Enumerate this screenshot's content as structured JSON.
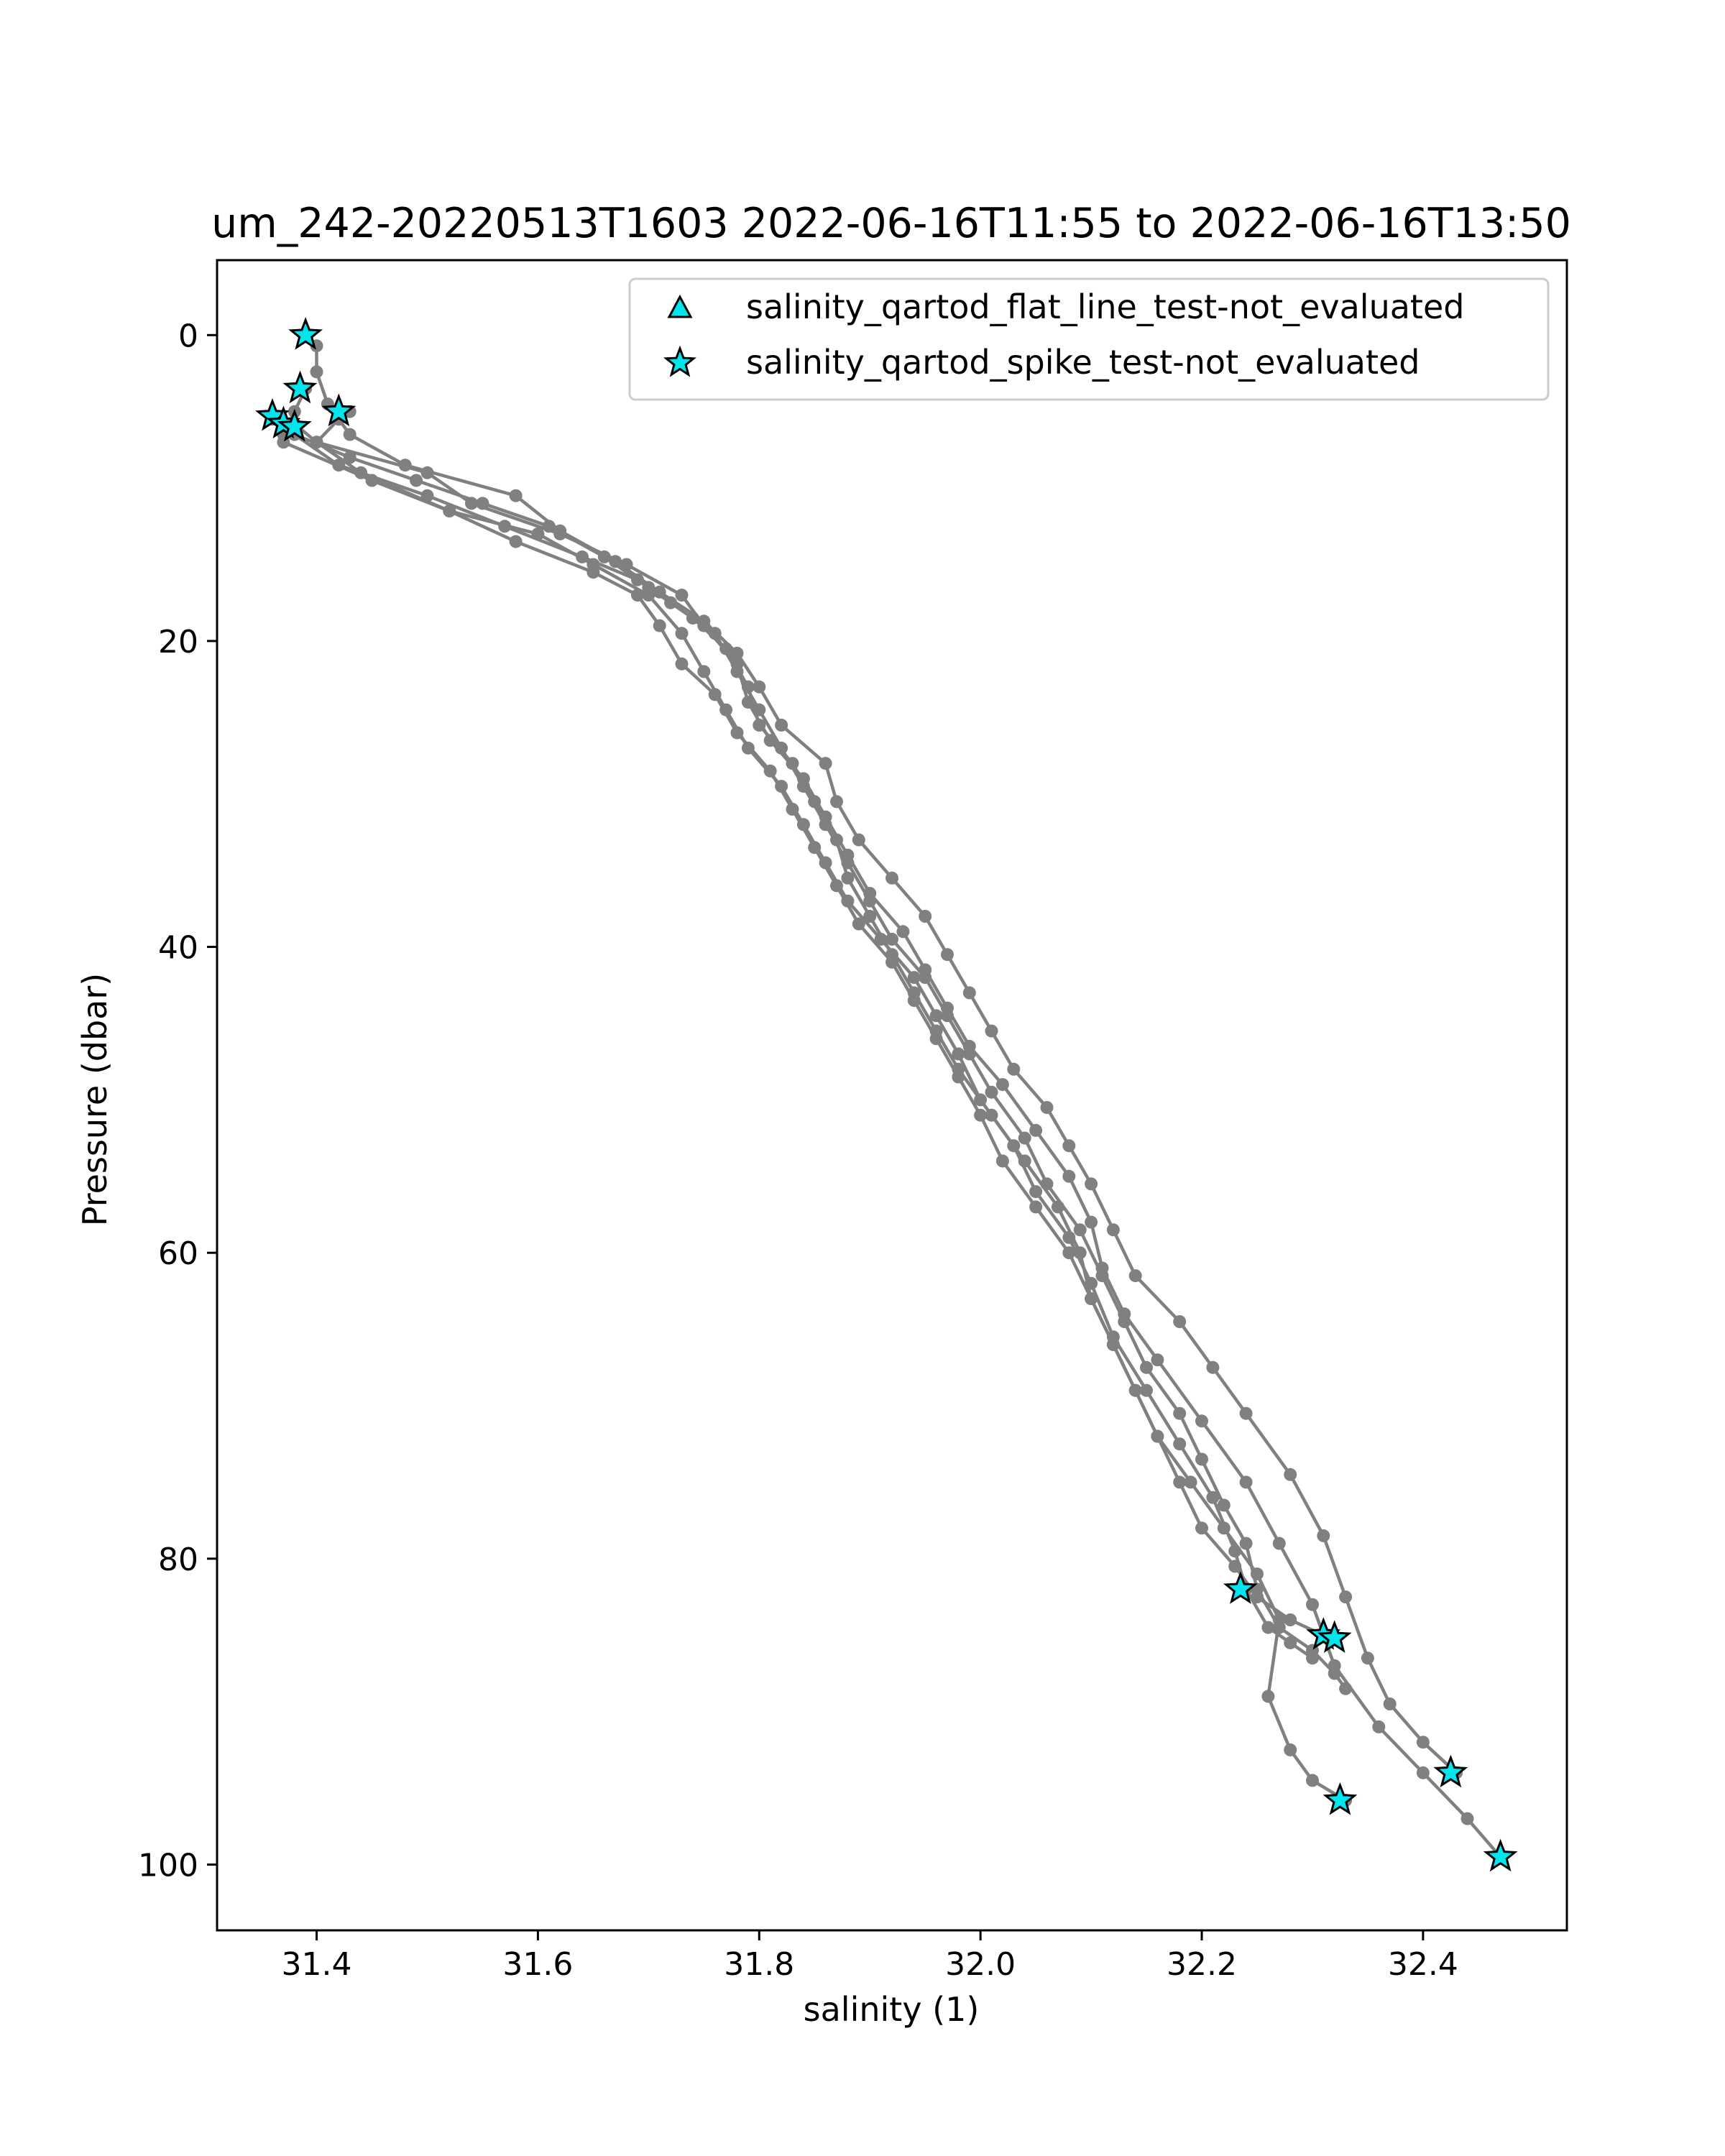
{
  "chart_data": {
    "type": "scatter",
    "title": "um_242-20220513T1603 2022-06-16T11:55 to 2022-06-16T13:50",
    "xlabel": "salinity (1)",
    "ylabel": "Pressure (dbar)",
    "xlim": [
      31.31,
      32.53
    ],
    "ylim": [
      104.3,
      -4.9
    ],
    "y_inverted": true,
    "grid": false,
    "legend_position": "upper right",
    "x_ticks": [
      31.4,
      31.6,
      31.8,
      32.0,
      32.2,
      32.4
    ],
    "x_tick_labels": [
      "31.4",
      "31.6",
      "31.8",
      "32.0",
      "32.2",
      "32.4"
    ],
    "y_ticks": [
      0,
      20,
      40,
      60,
      80,
      100
    ],
    "y_tick_labels": [
      "0",
      "20",
      "40",
      "60",
      "80",
      "100"
    ],
    "colors": {
      "profile": "#808080",
      "flag_fill": "#00e5ee",
      "flag_edge": "#000000"
    },
    "profiles": [
      {
        "x": [
          31.39,
          31.4,
          31.4,
          31.41,
          31.43,
          31.48,
          31.58,
          31.62,
          31.67,
          31.71,
          31.75,
          31.78,
          31.8,
          31.82,
          31.86,
          31.87,
          31.89,
          31.92,
          31.95,
          31.97,
          31.99,
          32.01,
          32.03,
          32.06,
          32.08,
          32.1,
          32.12,
          32.14,
          32.18,
          32.21,
          32.24,
          32.28,
          32.31,
          32.33,
          32.35,
          32.37,
          32.4,
          32.43
        ],
        "y": [
          0.0,
          0.7,
          2.4,
          4.5,
          6.5,
          8.5,
          10.5,
          12.8,
          14.8,
          16.8,
          18.7,
          20.8,
          23.0,
          25.5,
          28.0,
          30.5,
          33.0,
          35.5,
          38.0,
          40.5,
          43.0,
          45.5,
          48.0,
          50.5,
          53.0,
          55.5,
          58.5,
          61.5,
          64.5,
          67.5,
          70.5,
          74.5,
          78.5,
          82.5,
          86.5,
          89.5,
          92.0,
          94.0
        ]
      },
      {
        "x": [
          31.43,
          31.42,
          31.4,
          31.5,
          31.54,
          31.62,
          31.68,
          31.73,
          31.75,
          31.78,
          31.79,
          31.81,
          31.84,
          31.86,
          31.88,
          31.9,
          31.93,
          31.95,
          31.97,
          31.99,
          32.02,
          32.05,
          32.08,
          32.1,
          32.11,
          32.13,
          32.16,
          32.2,
          32.24,
          32.27,
          32.3,
          32.32,
          32.36,
          32.4,
          32.44,
          32.47
        ],
        "y": [
          5.0,
          5.5,
          7.0,
          9.0,
          11.0,
          13.0,
          15.0,
          17.0,
          19.0,
          21.5,
          24.0,
          26.5,
          29.0,
          31.5,
          34.0,
          36.5,
          39.0,
          41.5,
          44.0,
          46.5,
          49.0,
          52.0,
          55.0,
          58.0,
          61.0,
          64.0,
          67.0,
          71.0,
          75.0,
          79.0,
          83.0,
          87.0,
          91.0,
          94.0,
          97.0,
          99.5
        ]
      },
      {
        "x": [
          31.39,
          31.38,
          31.37,
          31.37,
          31.45,
          31.52,
          31.6,
          31.65,
          31.7,
          31.73,
          31.75,
          31.77,
          31.79,
          31.82,
          31.84,
          31.86,
          31.88,
          31.91,
          31.94,
          31.96,
          31.98,
          32.0,
          32.03,
          32.05,
          32.08,
          32.1,
          32.12,
          32.15,
          32.18,
          32.21,
          32.23,
          32.24,
          32.26,
          32.28,
          32.3
        ],
        "y": [
          3.5,
          5.0,
          6.5,
          7.0,
          9.5,
          11.5,
          13.0,
          15.0,
          17.0,
          19.5,
          22.0,
          24.5,
          27.0,
          29.5,
          32.0,
          34.5,
          37.0,
          39.5,
          42.0,
          44.5,
          47.0,
          50.0,
          53.0,
          56.0,
          59.0,
          62.0,
          65.5,
          69.0,
          72.5,
          76.0,
          79.5,
          82.0,
          84.5,
          85.5,
          86.5
        ]
      },
      {
        "x": [
          31.36,
          31.38,
          31.43,
          31.49,
          31.55,
          31.61,
          31.66,
          31.7,
          31.74,
          31.77,
          31.79,
          31.8,
          31.83,
          31.85,
          31.87,
          31.88,
          31.9,
          31.92,
          31.94,
          31.96,
          31.98,
          32.01,
          32.04,
          32.07,
          32.09,
          32.1,
          32.12,
          32.14,
          32.16,
          32.18,
          32.2,
          32.23,
          32.25,
          32.28,
          32.31
        ],
        "y": [
          5.5,
          6.5,
          8.0,
          9.5,
          11.0,
          12.5,
          14.5,
          16.5,
          18.5,
          20.5,
          23.0,
          25.5,
          28.0,
          30.5,
          33.0,
          35.5,
          38.0,
          40.5,
          43.0,
          45.5,
          48.0,
          51.0,
          54.0,
          57.0,
          60.0,
          63.0,
          66.0,
          69.0,
          72.0,
          75.0,
          78.0,
          80.5,
          82.5,
          84.0,
          85.0
        ]
      },
      {
        "x": [
          31.37,
          31.38,
          31.42,
          31.5,
          31.57,
          31.64,
          31.69,
          31.72,
          31.76,
          31.78,
          31.8,
          31.82,
          31.84,
          31.86,
          31.88,
          31.9,
          31.92,
          31.95,
          31.97,
          31.99,
          32.01,
          32.04,
          32.06,
          32.09,
          32.11,
          32.13,
          32.15,
          32.18,
          32.2,
          32.22,
          32.24,
          32.25,
          32.27,
          32.3,
          32.32,
          32.33
        ],
        "y": [
          6.0,
          6.5,
          8.5,
          10.5,
          12.5,
          14.5,
          16.0,
          17.5,
          19.5,
          22.0,
          24.5,
          27.0,
          29.5,
          32.0,
          34.5,
          37.0,
          39.5,
          42.0,
          44.5,
          47.0,
          49.5,
          52.5,
          55.5,
          58.5,
          61.5,
          64.5,
          67.5,
          70.5,
          73.5,
          76.5,
          79.0,
          82.0,
          84.5,
          86.0,
          87.5,
          88.5
        ]
      },
      {
        "x": [
          31.38,
          31.4,
          31.44,
          31.52,
          31.58,
          31.65,
          31.69,
          31.71,
          31.73,
          31.76,
          31.78,
          31.81,
          31.83,
          31.85,
          31.87,
          31.89,
          31.92,
          31.94,
          31.96,
          31.98,
          32.0,
          32.02,
          32.05,
          32.08,
          32.1,
          32.12,
          32.14,
          32.16,
          32.19,
          32.22,
          32.25,
          32.27,
          32.26,
          32.28,
          32.3,
          32.33
        ],
        "y": [
          5.8,
          7.0,
          9.0,
          11.5,
          13.5,
          15.5,
          17.0,
          19.0,
          21.5,
          23.5,
          26.0,
          28.5,
          31.0,
          33.5,
          36.0,
          38.5,
          41.0,
          43.5,
          46.0,
          48.5,
          51.0,
          54.0,
          57.0,
          60.0,
          63.0,
          66.0,
          69.0,
          72.0,
          75.0,
          78.0,
          81.0,
          84.0,
          89.0,
          92.5,
          94.5,
          95.8
        ]
      }
    ],
    "flag_series": [
      {
        "name": "salinity_qartod_flat_line_test-not_evaluated",
        "marker": "triangle",
        "x": [],
        "y": []
      },
      {
        "name": "salinity_qartod_spike_test-not_evaluated",
        "marker": "star",
        "x": [
          31.39,
          31.385,
          31.42,
          31.36,
          31.37,
          31.38,
          32.235,
          32.31,
          32.32,
          32.425,
          32.47,
          32.325
        ],
        "y": [
          0.0,
          3.5,
          5.0,
          5.3,
          5.8,
          6.0,
          82.0,
          85.0,
          85.2,
          94.0,
          99.5,
          95.8
        ]
      }
    ]
  }
}
